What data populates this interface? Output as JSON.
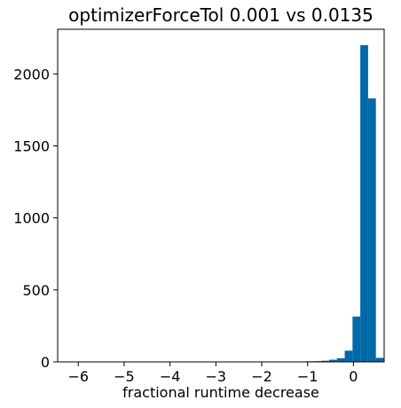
{
  "chart_data": {
    "type": "bar",
    "title": "optimizerForceTol 0.001 vs 0.0135",
    "xlabel": "fractional runtime decrease",
    "ylabel": "",
    "xlim": [
      -6.45,
      0.67
    ],
    "ylim": [
      0,
      2310
    ],
    "grid": false,
    "bar_color": "#0069A8",
    "xticks": [
      -6,
      -5,
      -4,
      -3,
      -2,
      -1,
      0
    ],
    "xtick_labels": [
      "−6",
      "−5",
      "−4",
      "−3",
      "−2",
      "−1",
      "0"
    ],
    "yticks": [
      0,
      500,
      1000,
      1500,
      2000
    ],
    "ytick_labels": [
      "0",
      "500",
      "1000",
      "1500",
      "2000"
    ],
    "bins": [
      {
        "x0": -2.07,
        "x1": -1.9,
        "count": 3
      },
      {
        "x0": -1.9,
        "x1": -1.73,
        "count": 0
      },
      {
        "x0": -1.73,
        "x1": -1.56,
        "count": 0
      },
      {
        "x0": -1.56,
        "x1": -1.21,
        "count": 0
      },
      {
        "x0": -1.21,
        "x1": -1.04,
        "count": 3
      },
      {
        "x0": -1.04,
        "x1": -0.87,
        "count": 4
      },
      {
        "x0": -0.87,
        "x1": -0.7,
        "count": 5
      },
      {
        "x0": -0.7,
        "x1": -0.53,
        "count": 8
      },
      {
        "x0": -0.53,
        "x1": -0.36,
        "count": 15
      },
      {
        "x0": -0.36,
        "x1": -0.19,
        "count": 25
      },
      {
        "x0": -0.19,
        "x1": -0.02,
        "count": 78
      },
      {
        "x0": -0.02,
        "x1": 0.15,
        "count": 315
      },
      {
        "x0": 0.15,
        "x1": 0.32,
        "count": 2200
      },
      {
        "x0": 0.32,
        "x1": 0.49,
        "count": 1830
      },
      {
        "x0": 0.49,
        "x1": 0.66,
        "count": 28
      }
    ]
  }
}
